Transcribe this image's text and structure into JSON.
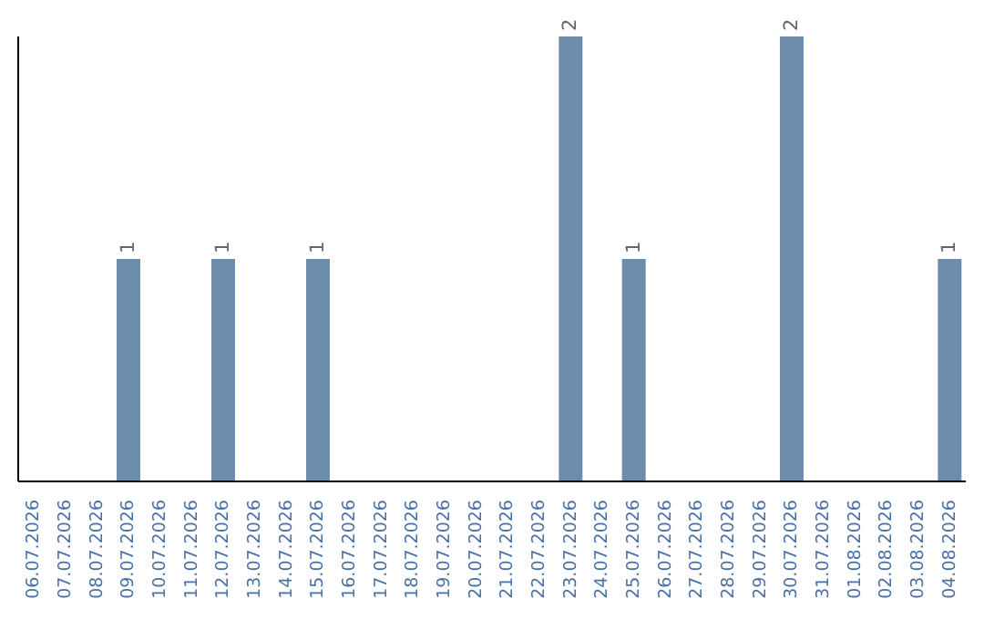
{
  "chart_data": {
    "type": "bar",
    "categories": [
      "06.07.2026",
      "07.07.2026",
      "08.07.2026",
      "09.07.2026",
      "10.07.2026",
      "11.07.2026",
      "12.07.2026",
      "13.07.2026",
      "14.07.2026",
      "15.07.2026",
      "16.07.2026",
      "17.07.2026",
      "18.07.2026",
      "19.07.2026",
      "20.07.2026",
      "21.07.2026",
      "22.07.2026",
      "23.07.2026",
      "24.07.2026",
      "25.07.2026",
      "26.07.2026",
      "27.07.2026",
      "28.07.2026",
      "29.07.2026",
      "30.07.2026",
      "31.07.2026",
      "01.08.2026",
      "02.08.2026",
      "03.08.2026",
      "04.08.2026"
    ],
    "values": [
      0,
      0,
      0,
      1,
      0,
      0,
      1,
      0,
      0,
      1,
      0,
      0,
      0,
      0,
      0,
      0,
      0,
      2,
      0,
      1,
      0,
      0,
      0,
      0,
      2,
      0,
      0,
      0,
      0,
      1
    ],
    "value_labels": [
      null,
      null,
      null,
      "1",
      null,
      null,
      "1",
      null,
      null,
      "1",
      null,
      null,
      null,
      null,
      null,
      null,
      null,
      "2",
      null,
      "1",
      null,
      null,
      null,
      null,
      "2",
      null,
      null,
      null,
      null,
      "1"
    ],
    "color": "#6d8cab",
    "ylim": [
      0,
      2
    ],
    "tick_labels": "x",
    "grid": false,
    "legend": false
  }
}
